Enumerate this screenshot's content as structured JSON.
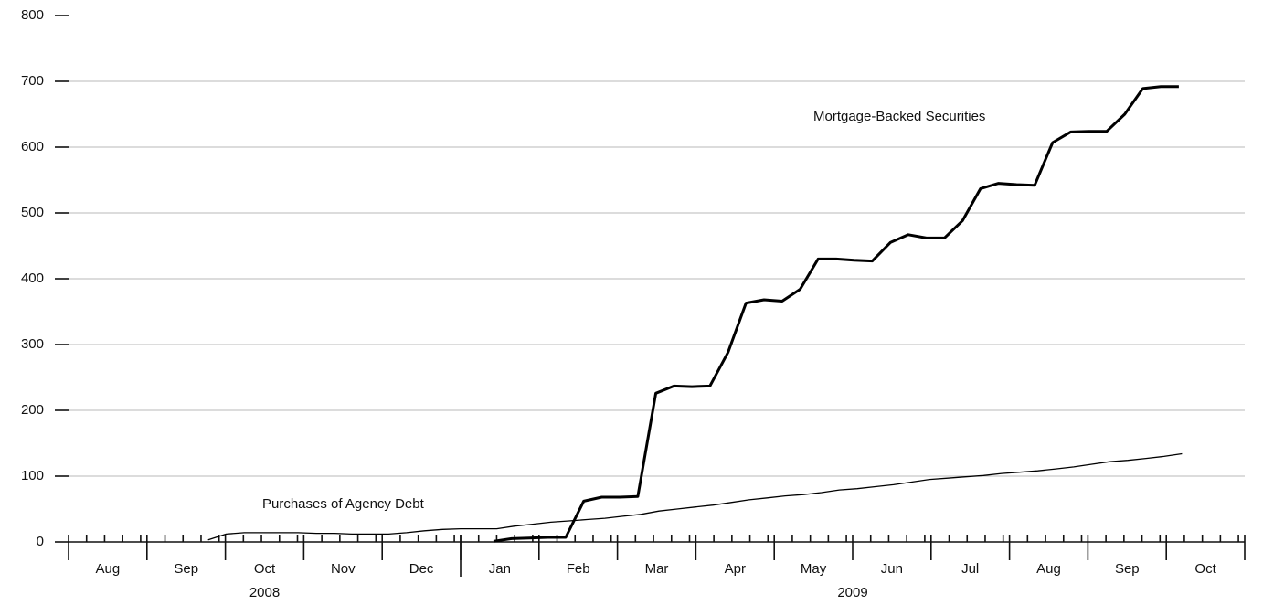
{
  "chart_data": {
    "type": "line",
    "month_labels": [
      "Aug",
      "Sep",
      "Oct",
      "Nov",
      "Dec",
      "Jan",
      "Feb",
      "Mar",
      "Apr",
      "May",
      "Jun",
      "Jul",
      "Aug",
      "Sep",
      "Oct"
    ],
    "year_labels": [
      "2008",
      "2009"
    ],
    "xlim": [
      0,
      15
    ],
    "ylim": [
      0,
      800
    ],
    "yticks": [
      0,
      100,
      200,
      300,
      400,
      500,
      600,
      700,
      800
    ],
    "grid": true,
    "series": [
      {
        "name": "Mortgage-Backed Securities",
        "color": "#000000",
        "width": 3,
        "x": [
          5.42,
          5.65,
          5.88,
          6.11,
          6.34,
          6.57,
          6.8,
          7.03,
          7.26,
          7.49,
          7.72,
          7.95,
          8.18,
          8.41,
          8.64,
          8.87,
          9.1,
          9.33,
          9.56,
          9.79,
          10.02,
          10.25,
          10.48,
          10.71,
          10.94,
          11.17,
          11.4,
          11.63,
          11.86,
          12.09,
          12.32,
          12.55,
          12.78,
          13.01,
          13.24,
          13.47,
          13.7,
          13.93,
          14.16
        ],
        "values": [
          1,
          5,
          6,
          7,
          7,
          62,
          68,
          68,
          69,
          226,
          237,
          236,
          237,
          288,
          363,
          368,
          366,
          384,
          430,
          430,
          428,
          427,
          455,
          467,
          462,
          462,
          488,
          537,
          545,
          543,
          542,
          607,
          623,
          624,
          624,
          650,
          689,
          692,
          692
        ]
      },
      {
        "name": "Purchases of Agency Debt",
        "color": "#000000",
        "width": 1.3,
        "x": [
          1.78,
          2.01,
          2.24,
          2.47,
          2.7,
          2.93,
          3.16,
          3.39,
          3.62,
          3.85,
          4.08,
          4.31,
          4.54,
          4.77,
          5,
          5.23,
          5.46,
          5.69,
          5.92,
          6.15,
          6.38,
          6.61,
          6.84,
          7.07,
          7.3,
          7.53,
          7.76,
          7.99,
          8.22,
          8.45,
          8.68,
          8.91,
          9.14,
          9.37,
          9.6,
          9.83,
          10.06,
          10.29,
          10.52,
          10.75,
          10.98,
          11.21,
          11.44,
          11.67,
          11.9,
          12.13,
          12.36,
          12.59,
          12.82,
          13.05,
          13.28,
          13.51,
          13.74,
          13.97,
          14.2
        ],
        "values": [
          3,
          12,
          14,
          14,
          14,
          14,
          13,
          13,
          12,
          12,
          12,
          14,
          17,
          19,
          20,
          20,
          20,
          24,
          27,
          30,
          32,
          34,
          36,
          39,
          42,
          47,
          50,
          53,
          56,
          60,
          64,
          67,
          70,
          72,
          75,
          79,
          81,
          84,
          87,
          91,
          95,
          97,
          99,
          101,
          104,
          106,
          108,
          111,
          114,
          118,
          122,
          124,
          127,
          130,
          134
        ]
      }
    ]
  }
}
